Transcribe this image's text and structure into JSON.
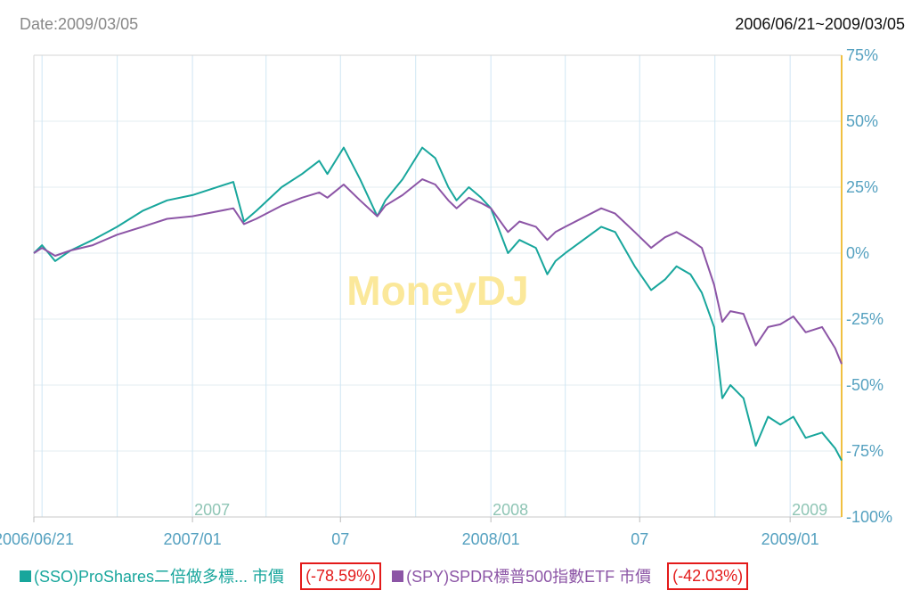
{
  "header": {
    "date_label": "Date:2009/03/05",
    "range_label": "2006/06/21~2009/03/05"
  },
  "colors": {
    "sso": "#18a69c",
    "spy": "#8c55a6",
    "axis": "#55a1c0",
    "right_axis": "#f0c040",
    "grid": "#e3edf2",
    "highlight": "#e31a1a",
    "watermark": "#fbe89a",
    "year_label": "#8fc5b5"
  },
  "watermark": "MoneyDJ",
  "legend": [
    {
      "name": "(SSO)ProShares二倍做多標... 市價",
      "change": "(-78.59%)",
      "color_key": "sso"
    },
    {
      "name": "(SPY)SPDR標普500指數ETF 市價",
      "change": "(-42.03%)",
      "color_key": "spy"
    }
  ],
  "chart_data": {
    "type": "line",
    "x_ticks": [
      "2006/06/21",
      "2007/01",
      "07",
      "2008/01",
      "07",
      "2009/01"
    ],
    "x_tick_dates": [
      "2006-06-21",
      "2007-01-01",
      "2007-07-01",
      "2008-01-01",
      "2008-07-01",
      "2009-01-01"
    ],
    "year_labels": [
      "2007",
      "2008",
      "2009"
    ],
    "y_ticks": [
      "75%",
      "50%",
      "25%",
      "0%",
      "-25%",
      "-50%",
      "-75%",
      "-100%"
    ],
    "y_tick_values": [
      75,
      50,
      25,
      0,
      -25,
      -50,
      -75,
      -100
    ],
    "ylim": [
      -100,
      75
    ],
    "xlim": [
      "2006-06-21",
      "2009-03-05"
    ],
    "y_axis_position": "right",
    "grid": true,
    "series": [
      {
        "name": "(SSO)ProShares二倍做多標... 市價",
        "color_key": "sso",
        "points": [
          [
            "2006-06-21",
            0
          ],
          [
            "2006-07-01",
            3
          ],
          [
            "2006-07-17",
            -3
          ],
          [
            "2006-08-05",
            1
          ],
          [
            "2006-09-01",
            5
          ],
          [
            "2006-10-01",
            10
          ],
          [
            "2006-11-01",
            16
          ],
          [
            "2006-12-01",
            20
          ],
          [
            "2007-01-01",
            22
          ],
          [
            "2007-02-20",
            27
          ],
          [
            "2007-03-05",
            12
          ],
          [
            "2007-03-20",
            16
          ],
          [
            "2007-04-20",
            25
          ],
          [
            "2007-05-15",
            30
          ],
          [
            "2007-06-05",
            35
          ],
          [
            "2007-06-15",
            30
          ],
          [
            "2007-07-05",
            40
          ],
          [
            "2007-07-25",
            28
          ],
          [
            "2007-08-15",
            14
          ],
          [
            "2007-08-25",
            20
          ],
          [
            "2007-09-15",
            28
          ],
          [
            "2007-10-09",
            40
          ],
          [
            "2007-10-25",
            36
          ],
          [
            "2007-11-10",
            25
          ],
          [
            "2007-11-20",
            20
          ],
          [
            "2007-12-05",
            25
          ],
          [
            "2007-12-20",
            21
          ],
          [
            "2008-01-01",
            17
          ],
          [
            "2008-01-22",
            0
          ],
          [
            "2008-02-05",
            5
          ],
          [
            "2008-02-25",
            2
          ],
          [
            "2008-03-10",
            -8
          ],
          [
            "2008-03-20",
            -3
          ],
          [
            "2008-04-01",
            0
          ],
          [
            "2008-05-15",
            10
          ],
          [
            "2008-06-01",
            8
          ],
          [
            "2008-06-25",
            -5
          ],
          [
            "2008-07-15",
            -14
          ],
          [
            "2008-08-01",
            -10
          ],
          [
            "2008-08-15",
            -5
          ],
          [
            "2008-09-01",
            -8
          ],
          [
            "2008-09-15",
            -15
          ],
          [
            "2008-09-30",
            -28
          ],
          [
            "2008-10-10",
            -55
          ],
          [
            "2008-10-20",
            -50
          ],
          [
            "2008-11-05",
            -55
          ],
          [
            "2008-11-20",
            -73
          ],
          [
            "2008-12-05",
            -62
          ],
          [
            "2008-12-20",
            -65
          ],
          [
            "2009-01-05",
            -62
          ],
          [
            "2009-01-20",
            -70
          ],
          [
            "2009-02-09",
            -68
          ],
          [
            "2009-02-25",
            -74
          ],
          [
            "2009-03-05",
            -78.59
          ]
        ]
      },
      {
        "name": "(SPY)SPDR標普500指數ETF 市價",
        "color_key": "spy",
        "points": [
          [
            "2006-06-21",
            0
          ],
          [
            "2006-07-01",
            2
          ],
          [
            "2006-07-17",
            -1
          ],
          [
            "2006-08-05",
            1
          ],
          [
            "2006-09-01",
            3
          ],
          [
            "2006-10-01",
            7
          ],
          [
            "2006-11-01",
            10
          ],
          [
            "2006-12-01",
            13
          ],
          [
            "2007-01-01",
            14
          ],
          [
            "2007-02-20",
            17
          ],
          [
            "2007-03-05",
            11
          ],
          [
            "2007-03-20",
            13
          ],
          [
            "2007-04-20",
            18
          ],
          [
            "2007-05-15",
            21
          ],
          [
            "2007-06-05",
            23
          ],
          [
            "2007-06-15",
            21
          ],
          [
            "2007-07-05",
            26
          ],
          [
            "2007-07-25",
            20
          ],
          [
            "2007-08-15",
            14
          ],
          [
            "2007-08-25",
            18
          ],
          [
            "2007-09-15",
            22
          ],
          [
            "2007-10-09",
            28
          ],
          [
            "2007-10-25",
            26
          ],
          [
            "2007-11-10",
            20
          ],
          [
            "2007-11-20",
            17
          ],
          [
            "2007-12-05",
            21
          ],
          [
            "2007-12-20",
            19
          ],
          [
            "2008-01-01",
            17
          ],
          [
            "2008-01-22",
            8
          ],
          [
            "2008-02-05",
            12
          ],
          [
            "2008-02-25",
            10
          ],
          [
            "2008-03-10",
            5
          ],
          [
            "2008-03-20",
            8
          ],
          [
            "2008-04-01",
            10
          ],
          [
            "2008-05-15",
            17
          ],
          [
            "2008-06-01",
            15
          ],
          [
            "2008-06-25",
            8
          ],
          [
            "2008-07-15",
            2
          ],
          [
            "2008-08-01",
            6
          ],
          [
            "2008-08-15",
            8
          ],
          [
            "2008-09-01",
            5
          ],
          [
            "2008-09-15",
            2
          ],
          [
            "2008-09-30",
            -12
          ],
          [
            "2008-10-10",
            -26
          ],
          [
            "2008-10-20",
            -22
          ],
          [
            "2008-11-05",
            -23
          ],
          [
            "2008-11-20",
            -35
          ],
          [
            "2008-12-05",
            -28
          ],
          [
            "2008-12-20",
            -27
          ],
          [
            "2009-01-05",
            -24
          ],
          [
            "2009-01-20",
            -30
          ],
          [
            "2009-02-09",
            -28
          ],
          [
            "2009-02-25",
            -36
          ],
          [
            "2009-03-05",
            -42.03
          ]
        ]
      }
    ]
  }
}
